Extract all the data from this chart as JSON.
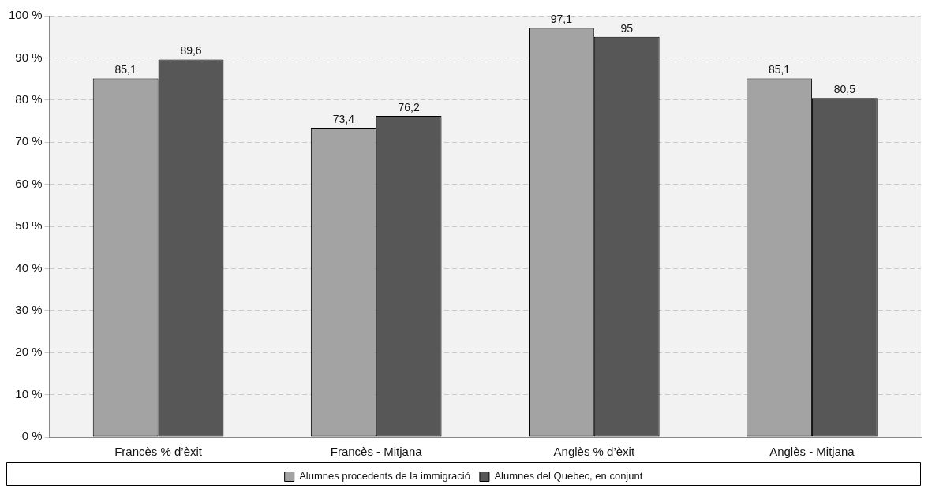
{
  "chart_data": {
    "type": "bar",
    "categories": [
      "Francès % d’èxit",
      "Francès - Mitjana",
      "Anglès % d’èxit",
      "Anglès - Mitjana"
    ],
    "series": [
      {
        "name": "Alumnes procedents de la immigració",
        "color": "#a3a3a3",
        "values": [
          85.1,
          73.4,
          97.1,
          85.1
        ],
        "value_labels": [
          "85,1",
          "73,4",
          "97,1",
          "85,1"
        ]
      },
      {
        "name": "Alumnes del Quebec, en conjunt",
        "color": "#575757",
        "values": [
          89.6,
          76.2,
          95,
          80.5
        ],
        "value_labels": [
          "89,6",
          "76,2",
          "95",
          "80,5"
        ]
      }
    ],
    "ylim": [
      0,
      100
    ],
    "yticks": [
      {
        "value": 0,
        "label": "0 %"
      },
      {
        "value": 10,
        "label": "10 %"
      },
      {
        "value": 20,
        "label": "20 %"
      },
      {
        "value": 30,
        "label": "30 %"
      },
      {
        "value": 40,
        "label": "40 %"
      },
      {
        "value": 50,
        "label": "50 %"
      },
      {
        "value": 60,
        "label": "60 %"
      },
      {
        "value": 70,
        "label": "70 %"
      },
      {
        "value": 80,
        "label": "80 %"
      },
      {
        "value": 90,
        "label": "90 %"
      },
      {
        "value": 100,
        "label": "100 %"
      }
    ],
    "grid": "y",
    "legend": "bottom"
  }
}
